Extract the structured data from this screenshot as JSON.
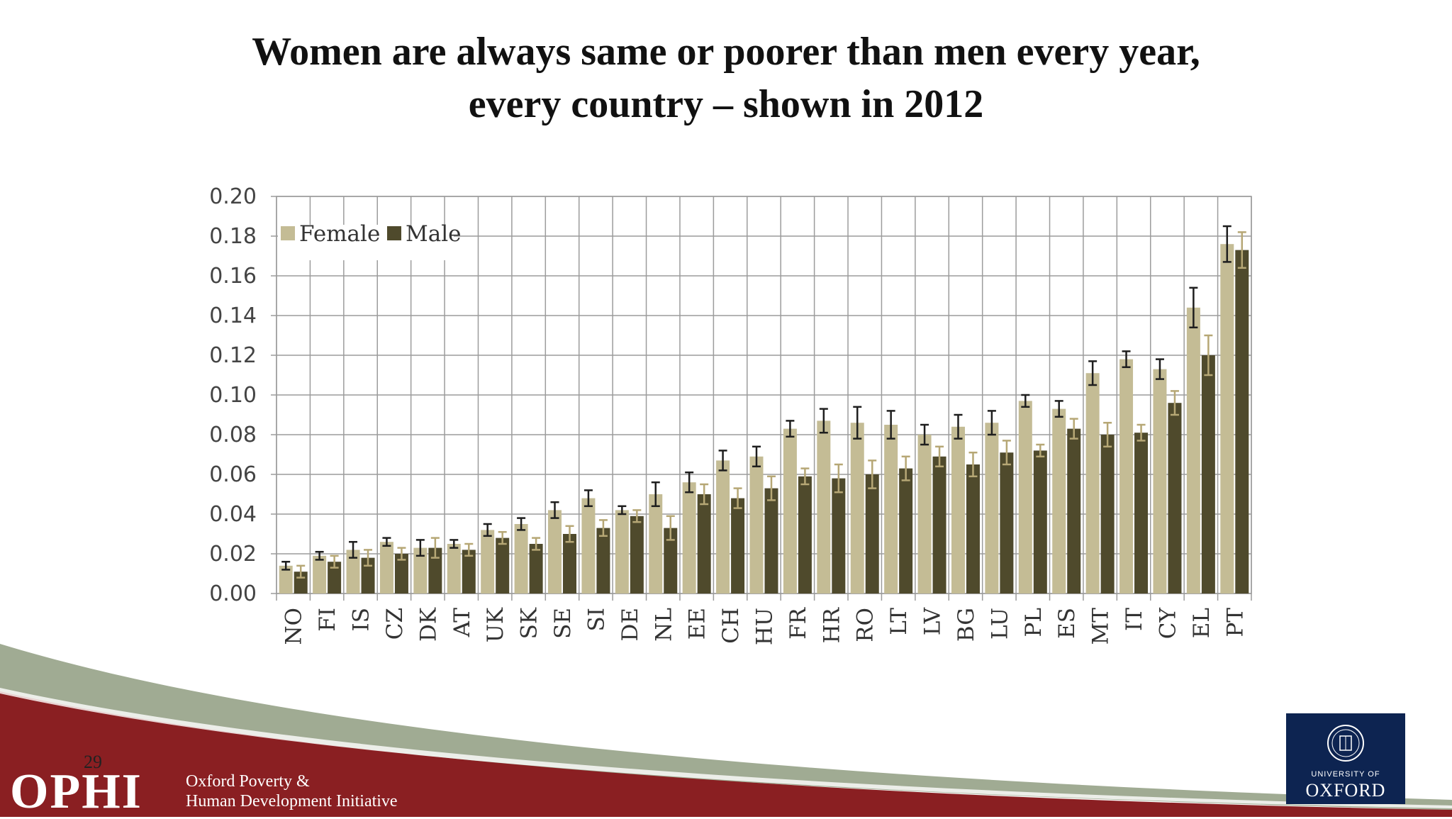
{
  "slide": {
    "title_line1": "Women are always same or poorer than men every year,",
    "title_line2": "every country – shown in 2012",
    "page_number": "29"
  },
  "footer": {
    "ophi_logo": "OPHI",
    "ophi_line1": "Oxford Poverty &",
    "ophi_line2": "Human Development Initiative",
    "oxford_small": "UNIVERSITY OF",
    "oxford_big": "OXFORD"
  },
  "colors": {
    "female": "#c4bc95",
    "male": "#4f4a2c",
    "female_error": "#1e1e1e",
    "male_error": "#b6a775",
    "grid": "#9c9c9c",
    "footer_red": "#8a1f22",
    "footer_green": "#8f9c80"
  },
  "chart_data": {
    "type": "bar",
    "title": "",
    "xlabel": "",
    "ylabel": "",
    "ylim": [
      0,
      0.2
    ],
    "yticks": [
      "0.00",
      "0.02",
      "0.04",
      "0.06",
      "0.08",
      "0.10",
      "0.12",
      "0.14",
      "0.16",
      "0.18",
      "0.20"
    ],
    "grid": true,
    "legend_position": "top-left",
    "categories": [
      "NO",
      "FI",
      "IS",
      "CZ",
      "DK",
      "AT",
      "UK",
      "SK",
      "SE",
      "SI",
      "DE",
      "NL",
      "EE",
      "CH",
      "HU",
      "FR",
      "HR",
      "RO",
      "LT",
      "LV",
      "BG",
      "LU",
      "PL",
      "ES",
      "MT",
      "IT",
      "CY",
      "EL",
      "PT"
    ],
    "series": [
      {
        "name": "Female",
        "values": [
          0.014,
          0.019,
          0.022,
          0.026,
          0.023,
          0.025,
          0.032,
          0.035,
          0.042,
          0.048,
          0.042,
          0.05,
          0.056,
          0.067,
          0.069,
          0.083,
          0.087,
          0.086,
          0.085,
          0.08,
          0.084,
          0.086,
          0.097,
          0.093,
          0.111,
          0.118,
          0.113,
          0.144,
          0.176
        ],
        "errors": [
          0.002,
          0.002,
          0.004,
          0.002,
          0.004,
          0.002,
          0.003,
          0.003,
          0.004,
          0.004,
          0.002,
          0.006,
          0.005,
          0.005,
          0.005,
          0.004,
          0.006,
          0.008,
          0.007,
          0.005,
          0.006,
          0.006,
          0.003,
          0.004,
          0.006,
          0.004,
          0.005,
          0.01,
          0.009
        ]
      },
      {
        "name": "Male",
        "values": [
          0.011,
          0.016,
          0.018,
          0.02,
          0.023,
          0.022,
          0.028,
          0.025,
          0.03,
          0.033,
          0.039,
          0.033,
          0.05,
          0.048,
          0.053,
          0.059,
          0.058,
          0.06,
          0.063,
          0.069,
          0.065,
          0.071,
          0.072,
          0.083,
          0.08,
          0.081,
          0.096,
          0.12,
          0.173
        ],
        "errors": [
          0.003,
          0.003,
          0.004,
          0.003,
          0.005,
          0.003,
          0.003,
          0.003,
          0.004,
          0.004,
          0.003,
          0.006,
          0.005,
          0.005,
          0.006,
          0.004,
          0.007,
          0.007,
          0.006,
          0.005,
          0.006,
          0.006,
          0.003,
          0.005,
          0.006,
          0.004,
          0.006,
          0.01,
          0.009
        ]
      }
    ]
  }
}
